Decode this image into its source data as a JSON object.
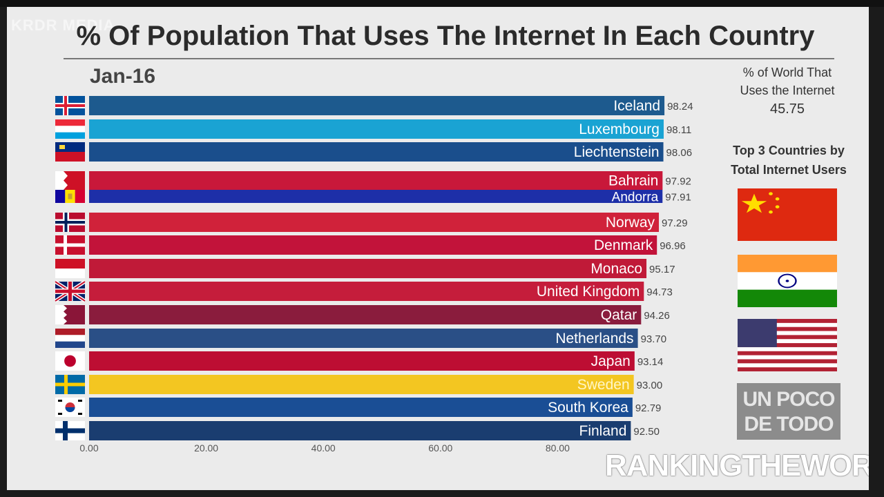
{
  "watermark_top": "KRDR MEDIA",
  "title": "% Of Population That Uses The Internet In Each Country",
  "date": "Jan-16",
  "world": {
    "label_line1": "% of World That",
    "label_line2": "Uses the Internet",
    "value": "45.75"
  },
  "top3": {
    "line1": "Top 3 Countries by",
    "line2": "Total Internet Users",
    "flags": [
      "china-flag",
      "india-flag",
      "usa-flag"
    ]
  },
  "logo": {
    "line1": "UN POCO",
    "line2": "DE TODO"
  },
  "watermark_bottom": "RANKINGTHEWORLD",
  "chart_data": {
    "type": "bar",
    "orientation": "horizontal",
    "xlim": [
      0,
      100
    ],
    "ticks": [
      "0.00",
      "20.00",
      "40.00",
      "60.00",
      "80.00"
    ],
    "tick_values": [
      0,
      20,
      40,
      60,
      80
    ],
    "categories": [
      "Iceland",
      "Luxembourg",
      "Liechtenstein",
      "Bahrain",
      "Andorra",
      "Norway",
      "Denmark",
      "Monaco",
      "United Kingdom",
      "Qatar",
      "Netherlands",
      "Japan",
      "Sweden",
      "South Korea",
      "Finland"
    ],
    "values": [
      98.24,
      98.11,
      98.06,
      97.92,
      97.91,
      97.29,
      96.96,
      95.17,
      94.73,
      94.26,
      93.7,
      93.14,
      93.0,
      92.79,
      92.5
    ],
    "value_labels": [
      "98.24",
      "98.11",
      "98.06",
      "97.92",
      "97.91",
      "97.29",
      "96.96",
      "95.17",
      "94.73",
      "94.26",
      "93.70",
      "93.14",
      "93.00",
      "92.79",
      "92.50"
    ],
    "colors": [
      "#1d5a8e",
      "#1aa3d3",
      "#1a4e8c",
      "#c8183a",
      "#1d2fa8",
      "#d0223a",
      "#c2133a",
      "#c01a38",
      "#c51d3b",
      "#8a1c3d",
      "#2a4f86",
      "#bd0e33",
      "#f3c621",
      "#1a4e95",
      "#1a3d70"
    ],
    "flags": [
      "iceland-flag",
      "luxembourg-flag",
      "liechtenstein-flag",
      "bahrain-flag",
      "andorra-flag",
      "norway-flag",
      "denmark-flag",
      "monaco-flag",
      "uk-flag",
      "qatar-flag",
      "netherlands-flag",
      "japan-flag",
      "sweden-flag",
      "south-korea-flag",
      "finland-flag"
    ]
  }
}
